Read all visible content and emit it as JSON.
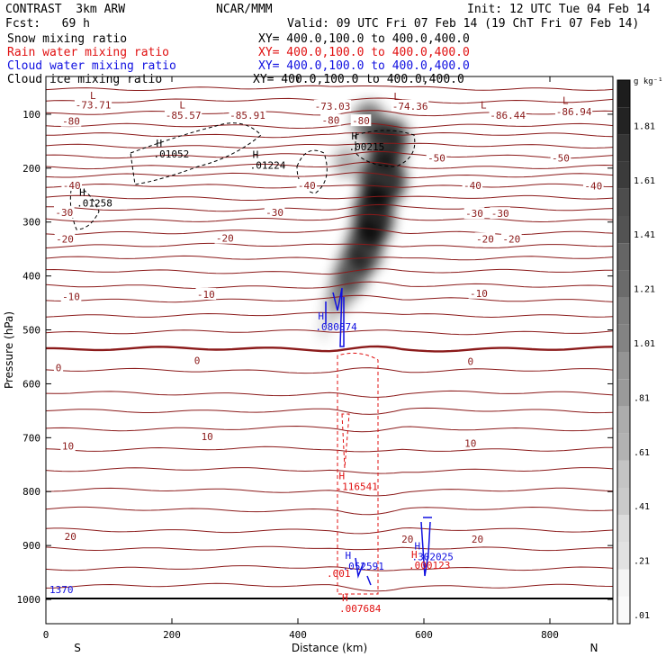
{
  "header": {
    "title": "CONTRAST  3km ARW",
    "center": "NCAR/MMM",
    "init": "Init: 12 UTC Tue 04 Feb 14",
    "fcst": "Fcst:   69 h",
    "valid": "Valid: 09 UTC Fri 07 Feb 14 (19 ChT Fri 07 Feb 14)"
  },
  "legend": [
    {
      "label": "Snow mixing ratio",
      "xy": "XY= 400.0,100.0 to 400.0,400.0",
      "color": "#000000"
    },
    {
      "label": "Rain water mixing ratio",
      "xy": "XY= 400.0,100.0 to 400.0,400.0",
      "color": "#e01010"
    },
    {
      "label": "Cloud water mixing ratio",
      "xy": "XY= 400.0,100.0 to 400.0,400.0",
      "color": "#1010e0"
    },
    {
      "label": "Cloud ice mixing ratio",
      "xy": "XY= 400.0,100.0 to 400.0,400.0",
      "color": "#000000"
    }
  ],
  "chart_data": {
    "type": "cross-section",
    "xlabel": "Distance (km)",
    "ylabel": "Pressure (hPa)",
    "xlim": [
      0,
      900
    ],
    "ylim": [
      1045,
      30
    ],
    "x_ticks": [
      0,
      200,
      400,
      600,
      800
    ],
    "y_ticks": [
      100,
      200,
      300,
      400,
      500,
      600,
      700,
      800,
      900,
      1000
    ],
    "x_end_labels": {
      "left": "S",
      "right": "N"
    },
    "colorbar": {
      "unit": "g kg⁻¹",
      "labels": [
        ".01",
        ".21",
        ".41",
        ".61",
        ".81",
        "1.01",
        "1.21",
        "1.41",
        "1.61",
        "1.81"
      ]
    },
    "temperature_labels": [
      {
        "text": "-73.71",
        "x": 75,
        "p": 83
      },
      {
        "text": "-85.57",
        "x": 218,
        "p": 102
      },
      {
        "text": "-85.91",
        "x": 320,
        "p": 102
      },
      {
        "text": "-73.03",
        "x": 455,
        "p": 85
      },
      {
        "text": "-74.36",
        "x": 578,
        "p": 85
      },
      {
        "text": "-86.44",
        "x": 733,
        "p": 102
      },
      {
        "text": "-86.94",
        "x": 838,
        "p": 95
      },
      {
        "text": "-80",
        "x": 40,
        "p": 113
      },
      {
        "text": "-80",
        "x": 452,
        "p": 111
      },
      {
        "text": "-80",
        "x": 500,
        "p": 112
      },
      {
        "text": "-50",
        "x": 620,
        "p": 181
      },
      {
        "text": "-50",
        "x": 817,
        "p": 181
      },
      {
        "text": "-40",
        "x": 41,
        "p": 232
      },
      {
        "text": "-40",
        "x": 414,
        "p": 232
      },
      {
        "text": "-40",
        "x": 677,
        "p": 232
      },
      {
        "text": "-40",
        "x": 869,
        "p": 233
      },
      {
        "text": "-30",
        "x": 29,
        "p": 282
      },
      {
        "text": "-30",
        "x": 363,
        "p": 282
      },
      {
        "text": "-30",
        "x": 680,
        "p": 284
      },
      {
        "text": "-30",
        "x": 721,
        "p": 284
      },
      {
        "text": "-20",
        "x": 30,
        "p": 331
      },
      {
        "text": "-20",
        "x": 284,
        "p": 330
      },
      {
        "text": "-20",
        "x": 697,
        "p": 331
      },
      {
        "text": "-20",
        "x": 739,
        "p": 331
      },
      {
        "text": "-10",
        "x": 40,
        "p": 438
      },
      {
        "text": "-10",
        "x": 254,
        "p": 434
      },
      {
        "text": "-10",
        "x": 687,
        "p": 432
      },
      {
        "text": "0",
        "x": 20,
        "p": 570
      },
      {
        "text": "0",
        "x": 240,
        "p": 557
      },
      {
        "text": "0",
        "x": 674,
        "p": 558
      },
      {
        "text": "10",
        "x": 35,
        "p": 715
      },
      {
        "text": "10",
        "x": 256,
        "p": 698
      },
      {
        "text": "10",
        "x": 674,
        "p": 710
      },
      {
        "text": "20",
        "x": 39,
        "p": 883
      },
      {
        "text": "20",
        "x": 574,
        "p": 888
      },
      {
        "text": "20",
        "x": 685,
        "p": 888
      }
    ],
    "extrema": [
      {
        "mark": "L",
        "value": "",
        "x": 70,
        "p": 72,
        "color": "#8b1a1a"
      },
      {
        "mark": "L",
        "value": "",
        "x": 212,
        "p": 89,
        "color": "#8b1a1a"
      },
      {
        "mark": "L",
        "value": "",
        "x": 552,
        "p": 73,
        "color": "#8b1a1a"
      },
      {
        "mark": "L",
        "value": "",
        "x": 690,
        "p": 89,
        "color": "#8b1a1a"
      },
      {
        "mark": "L",
        "value": "",
        "x": 820,
        "p": 81,
        "color": "#8b1a1a"
      },
      {
        "mark": "H",
        "value": ".01052",
        "x": 175,
        "p": 160,
        "color": "#000000"
      },
      {
        "mark": "H",
        "value": ".00215",
        "x": 485,
        "p": 147,
        "color": "#000000"
      },
      {
        "mark": "H",
        "value": ".01224",
        "x": 328,
        "p": 181,
        "color": "#000000"
      },
      {
        "mark": "H",
        "value": ".01258",
        "x": 53,
        "p": 251,
        "color": "#000000"
      },
      {
        "mark": "H",
        "value": ".080874",
        "x": 432,
        "p": 481,
        "color": "#1010e0"
      },
      {
        "mark": "H",
        "value": ".116541",
        "x": 465,
        "p": 777,
        "color": "#e01010"
      },
      {
        "mark": "H",
        "value": ".302025",
        "x": 585,
        "p": 907,
        "color": "#1010e0"
      },
      {
        "mark": "H",
        "value": ".000123",
        "x": 580,
        "p": 923,
        "color": "#e01010"
      },
      {
        "mark": "H",
        "value": ".052591",
        "x": 475,
        "p": 925,
        "color": "#1010e0"
      },
      {
        "mark": "",
        "value": ".001",
        "x": 450,
        "p": 958,
        "color": "#e01010"
      },
      {
        "mark": "H",
        "value": ".007684",
        "x": 470,
        "p": 1003,
        "color": "#e01010"
      },
      {
        "mark": "",
        "value": "1370",
        "x": 10,
        "p": 988,
        "color": "#1010e0"
      }
    ]
  }
}
